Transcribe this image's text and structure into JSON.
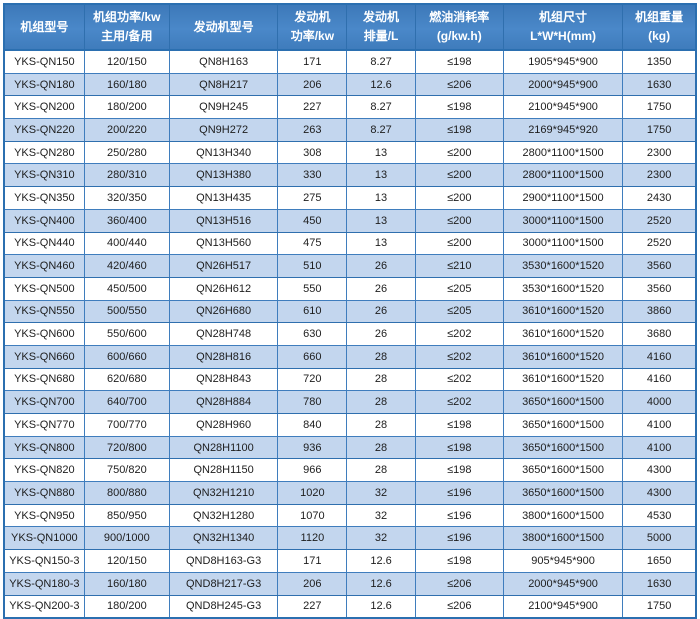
{
  "colors": {
    "header_bg": "#4384c5",
    "header_text": "#ffffff",
    "row_alt_bg": "#c3d6ee",
    "row_bg": "#ffffff",
    "border": "#2e74b5",
    "cell_text": "#1d1d1d"
  },
  "chart_data": {
    "type": "table",
    "columns": [
      {
        "id": "unit-model",
        "lines": [
          "机组型号"
        ]
      },
      {
        "id": "unit-power",
        "lines": [
          "机组功率/kw",
          "主用/备用"
        ]
      },
      {
        "id": "engine-model",
        "lines": [
          "发动机型号"
        ]
      },
      {
        "id": "engine-power",
        "lines": [
          "发动机",
          "功率/kw"
        ]
      },
      {
        "id": "displacement",
        "lines": [
          "发动机",
          "排量/L"
        ]
      },
      {
        "id": "fuel-rate",
        "lines": [
          "燃油消耗率",
          "(g/kw.h)"
        ]
      },
      {
        "id": "dimensions",
        "lines": [
          "机组尺寸",
          "L*W*H(mm)"
        ]
      },
      {
        "id": "weight",
        "lines": [
          "机组重量",
          "(kg)"
        ]
      }
    ],
    "rows": [
      [
        "YKS-QN150",
        "120/150",
        "QN8H163",
        "171",
        "8.27",
        "≤198",
        "1905*945*900",
        "1350"
      ],
      [
        "YKS-QN180",
        "160/180",
        "QN8H217",
        "206",
        "12.6",
        "≤206",
        "2000*945*900",
        "1630"
      ],
      [
        "YKS-QN200",
        "180/200",
        "QN9H245",
        "227",
        "8.27",
        "≤198",
        "2100*945*900",
        "1750"
      ],
      [
        "YKS-QN220",
        "200/220",
        "QN9H272",
        "263",
        "8.27",
        "≤198",
        "2169*945*920",
        "1750"
      ],
      [
        "YKS-QN280",
        "250/280",
        "QN13H340",
        "308",
        "13",
        "≤200",
        "2800*1100*1500",
        "2300"
      ],
      [
        "YKS-QN310",
        "280/310",
        "QN13H380",
        "330",
        "13",
        "≤200",
        "2800*1100*1500",
        "2300"
      ],
      [
        "YKS-QN350",
        "320/350",
        "QN13H435",
        "275",
        "13",
        "≤200",
        "2900*1100*1500",
        "2430"
      ],
      [
        "YKS-QN400",
        "360/400",
        "QN13H516",
        "450",
        "13",
        "≤200",
        "3000*1100*1500",
        "2520"
      ],
      [
        "YKS-QN440",
        "400/440",
        "QN13H560",
        "475",
        "13",
        "≤200",
        "3000*1100*1500",
        "2520"
      ],
      [
        "YKS-QN460",
        "420/460",
        "QN26H517",
        "510",
        "26",
        "≤210",
        "3530*1600*1520",
        "3560"
      ],
      [
        "YKS-QN500",
        "450/500",
        "QN26H612",
        "550",
        "26",
        "≤205",
        "3530*1600*1520",
        "3560"
      ],
      [
        "YKS-QN550",
        "500/550",
        "QN26H680",
        "610",
        "26",
        "≤205",
        "3610*1600*1520",
        "3860"
      ],
      [
        "YKS-QN600",
        "550/600",
        "QN28H748",
        "630",
        "26",
        "≤202",
        "3610*1600*1520",
        "3680"
      ],
      [
        "YKS-QN660",
        "600/660",
        "QN28H816",
        "660",
        "28",
        "≤202",
        "3610*1600*1520",
        "4160"
      ],
      [
        "YKS-QN680",
        "620/680",
        "QN28H843",
        "720",
        "28",
        "≤202",
        "3610*1600*1520",
        "4160"
      ],
      [
        "YKS-QN700",
        "640/700",
        "QN28H884",
        "780",
        "28",
        "≤202",
        "3650*1600*1500",
        "4000"
      ],
      [
        "YKS-QN770",
        "700/770",
        "QN28H960",
        "840",
        "28",
        "≤198",
        "3650*1600*1500",
        "4100"
      ],
      [
        "YKS-QN800",
        "720/800",
        "QN28H1100",
        "936",
        "28",
        "≤198",
        "3650*1600*1500",
        "4100"
      ],
      [
        "YKS-QN820",
        "750/820",
        "QN28H1150",
        "966",
        "28",
        "≤198",
        "3650*1600*1500",
        "4300"
      ],
      [
        "YKS-QN880",
        "800/880",
        "QN32H1210",
        "1020",
        "32",
        "≤196",
        "3650*1600*1500",
        "4300"
      ],
      [
        "YKS-QN950",
        "850/950",
        "QN32H1280",
        "1070",
        "32",
        "≤196",
        "3800*1600*1500",
        "4530"
      ],
      [
        "YKS-QN1000",
        "900/1000",
        "QN32H1340",
        "1120",
        "32",
        "≤196",
        "3800*1600*1500",
        "5000"
      ],
      [
        "YKS-QN150-3",
        "120/150",
        "QND8H163-G3",
        "171",
        "12.6",
        "≤198",
        "905*945*900",
        "1650"
      ],
      [
        "YKS-QN180-3",
        "160/180",
        "QND8H217-G3",
        "206",
        "12.6",
        "≤206",
        "2000*945*900",
        "1630"
      ],
      [
        "YKS-QN200-3",
        "180/200",
        "QND8H245-G3",
        "227",
        "12.6",
        "≤206",
        "2100*945*900",
        "1750"
      ]
    ]
  }
}
